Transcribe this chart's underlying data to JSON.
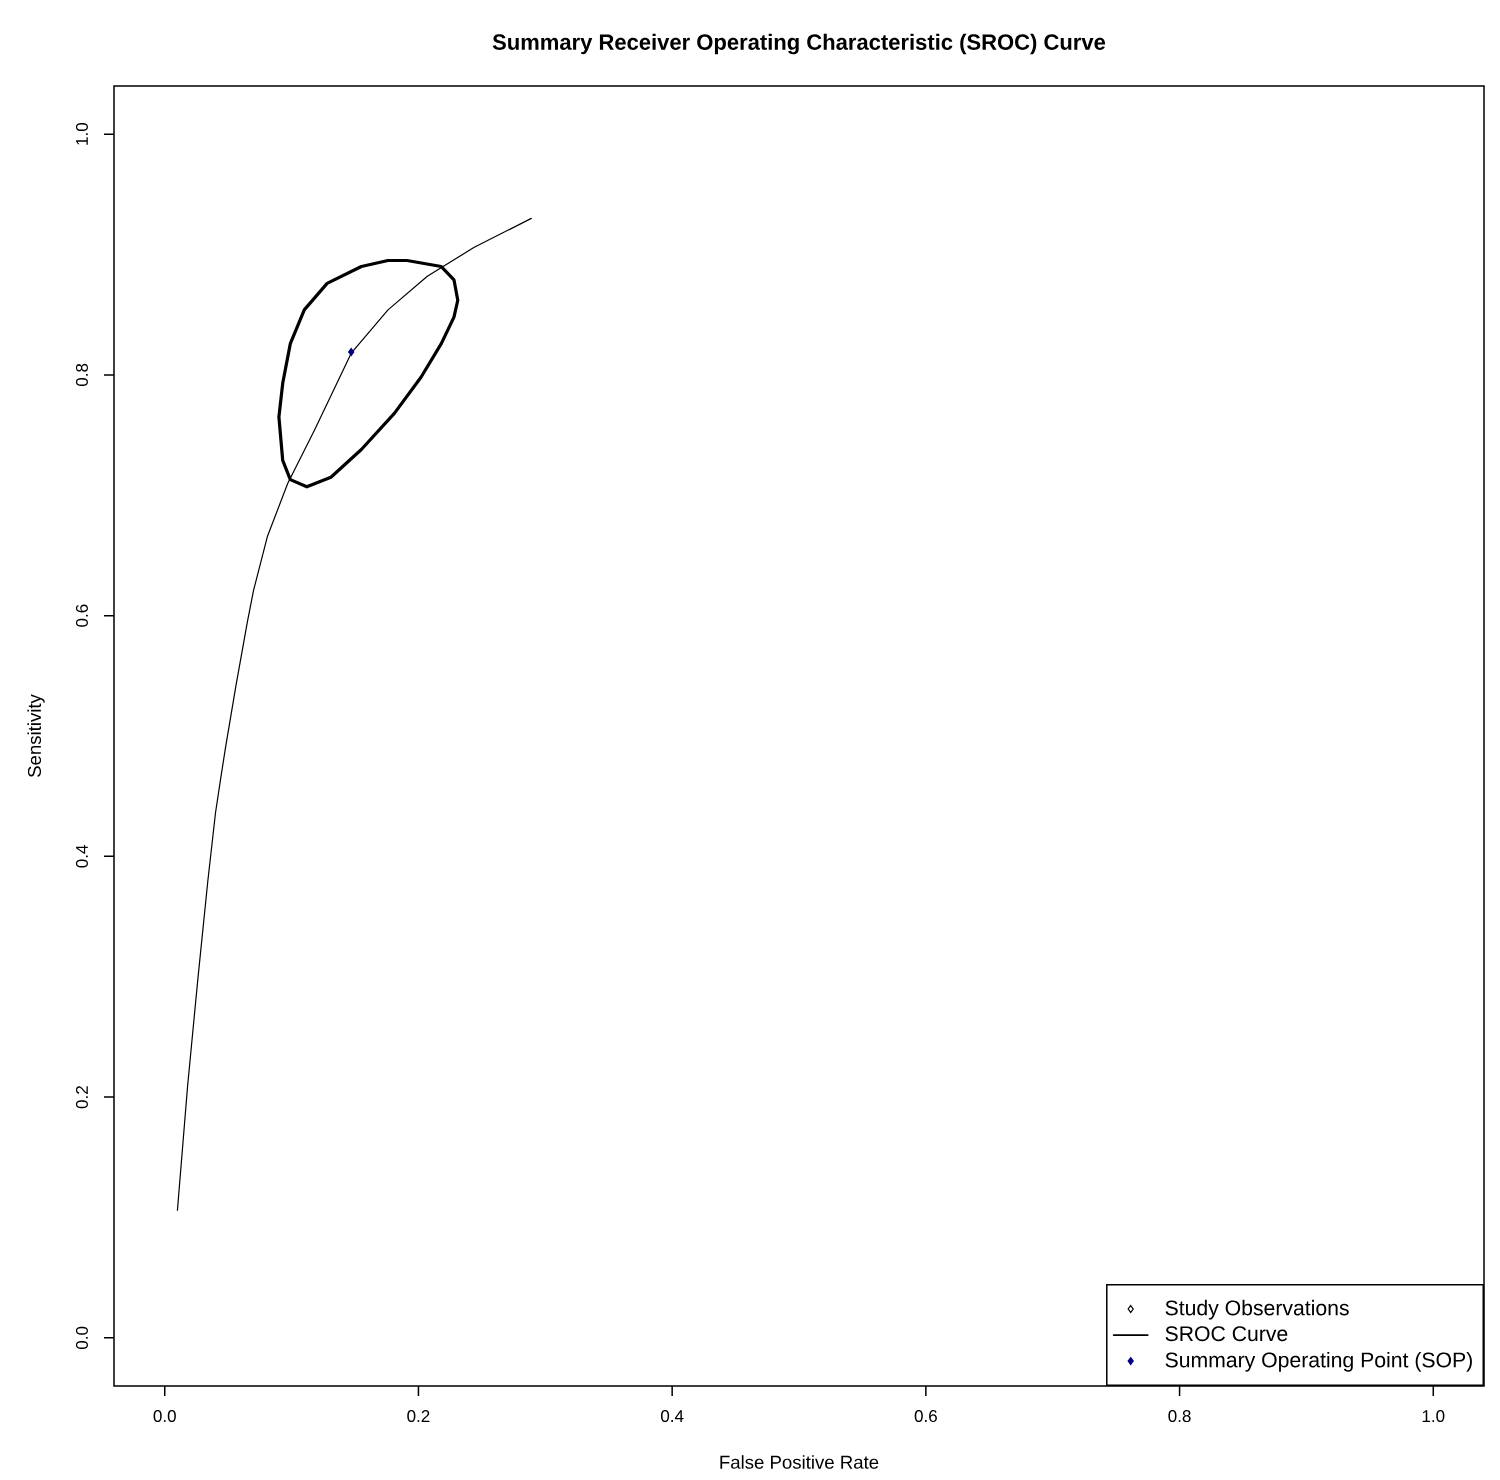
{
  "chart_data": {
    "type": "line",
    "title": "Summary Receiver Operating Characteristic (SROC) Curve",
    "xlabel": "False Positive Rate",
    "ylabel": "Sensitivity",
    "xlim": [
      -0.04,
      1.04
    ],
    "ylim": [
      -0.04,
      1.04
    ],
    "xticks": [
      {
        "value": 0,
        "label": "0.0"
      },
      0.2,
      0.4,
      0.6,
      0.8,
      {
        "value": 1,
        "label": "1.0"
      }
    ],
    "yticks": [
      {
        "value": 0,
        "label": "0.0"
      },
      0.2,
      0.4,
      0.6,
      0.8,
      {
        "value": 1,
        "label": "1.0"
      }
    ],
    "legend": "bottom right",
    "series": [
      {
        "name": "Study Observations",
        "type": "scatter",
        "marker": "diamond",
        "color": "#000000"
      },
      {
        "name": "SROC Curve",
        "color": "#000000",
        "x": [
          0.01,
          0.018,
          0.026,
          0.034,
          0.04,
          0.044,
          0.048,
          0.056,
          0.065,
          0.07,
          0.081,
          0.097,
          0.118,
          0.147,
          0.176,
          0.207,
          0.244,
          0.289
        ],
        "values": [
          0.106,
          0.209,
          0.297,
          0.38,
          0.436,
          0.464,
          0.491,
          0.541,
          0.594,
          0.621,
          0.666,
          0.71,
          0.754,
          0.818,
          0.854,
          0.882,
          0.906,
          0.93
        ]
      },
      {
        "name": "Summary Operating Point (SOP)",
        "type": "scatter",
        "marker": "diamond",
        "color": "#000080",
        "x": [
          0.147
        ],
        "values": [
          0.819
        ]
      },
      {
        "color": "#000000",
        "x": [
          0.191,
          0.218,
          0.228,
          0.231,
          0.228,
          0.218,
          0.202,
          0.181,
          0.155,
          0.131,
          0.112,
          0.099,
          0.093,
          0.09,
          0.093,
          0.099,
          0.11,
          0.128,
          0.155,
          0.176,
          0.19
        ],
        "values": [
          0.895,
          0.89,
          0.879,
          0.862,
          0.848,
          0.826,
          0.798,
          0.768,
          0.738,
          0.715,
          0.707,
          0.713,
          0.729,
          0.765,
          0.793,
          0.826,
          0.854,
          0.876,
          0.89,
          0.895,
          0.895
        ]
      }
    ]
  }
}
